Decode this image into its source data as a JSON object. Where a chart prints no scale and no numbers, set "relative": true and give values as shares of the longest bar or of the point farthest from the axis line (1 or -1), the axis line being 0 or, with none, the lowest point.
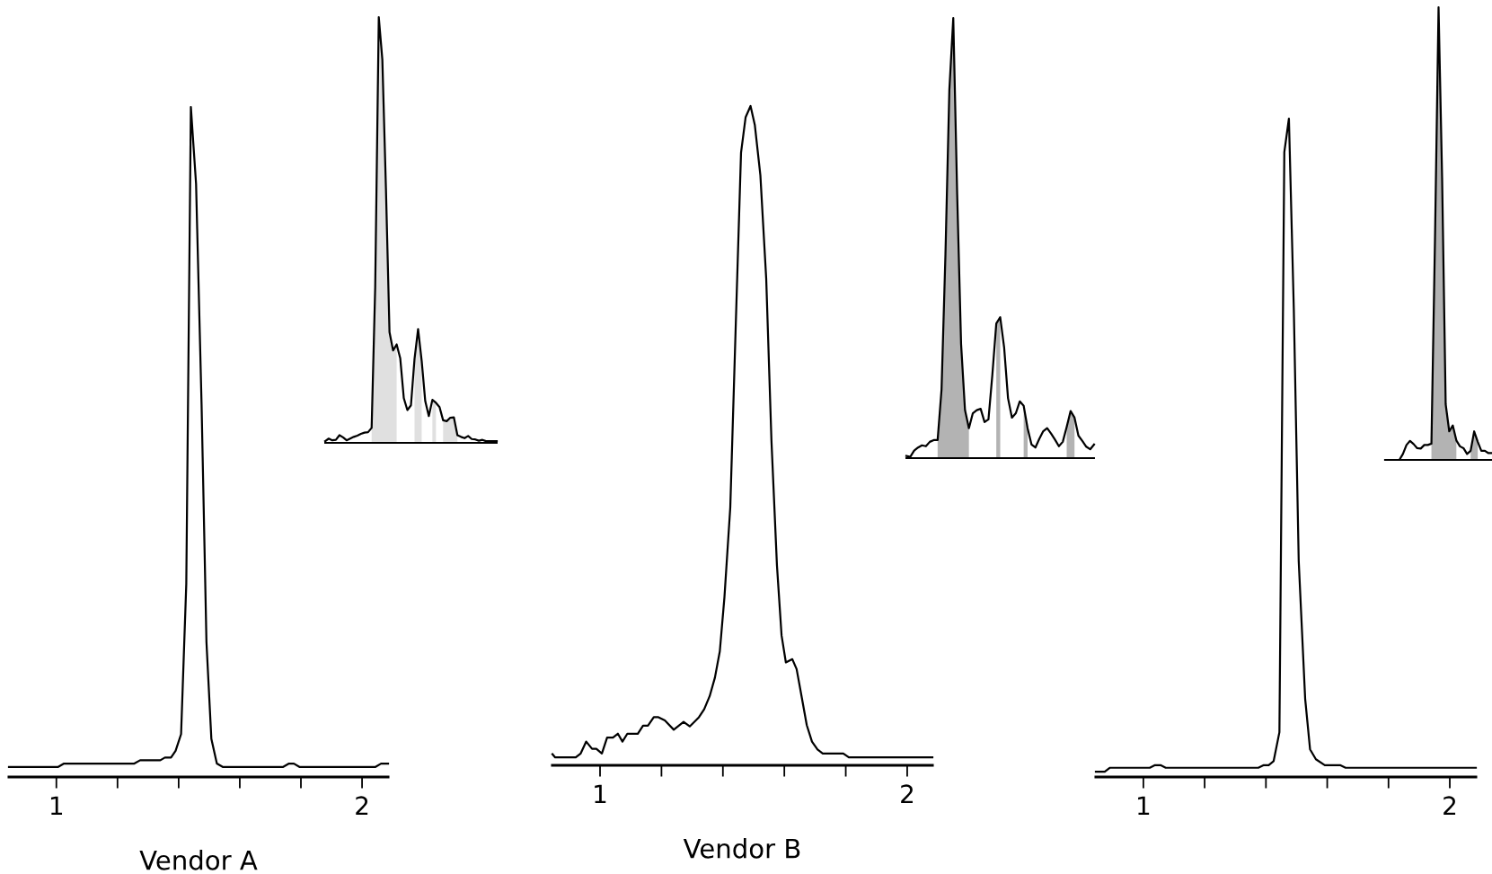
{
  "chart_data": [
    {
      "type": "line",
      "xlabel": "Vendor A",
      "relative": true,
      "xlim": [
        0.845,
        2.085
      ],
      "xticks": [
        1,
        {
          "value": 1.2,
          "label": null
        },
        {
          "value": 1.4,
          "label": null
        },
        {
          "value": 1.6,
          "label": null
        },
        {
          "value": 1.8,
          "label": null
        },
        2
      ],
      "x": [
        0.845,
        1.006,
        1.025,
        1.255,
        1.274,
        1.34,
        1.355,
        1.375,
        1.39,
        1.408,
        1.425,
        1.44,
        1.457,
        1.475,
        1.491,
        1.507,
        1.525,
        1.544,
        1.742,
        1.761,
        1.777,
        1.795,
        2.044,
        2.062,
        2.085
      ],
      "series": [
        {
          "color": "#000000",
          "values": [
            0.015,
            0.015,
            0.02,
            0.02,
            0.025,
            0.025,
            0.029,
            0.029,
            0.039,
            0.064,
            0.288,
            1.0,
            0.885,
            0.556,
            0.201,
            0.057,
            0.02,
            0.015,
            0.015,
            0.02,
            0.02,
            0.015,
            0.015,
            0.02,
            0.02
          ]
        }
      ]
    },
    {
      "type": "line",
      "relative": true,
      "categories": [
        null,
        null,
        null,
        null,
        null,
        null,
        null,
        null,
        null,
        null,
        null,
        null,
        null,
        null,
        null,
        null,
        null,
        null,
        null,
        null,
        null,
        null,
        null,
        null,
        null,
        null,
        null,
        null,
        null,
        null,
        null,
        null,
        null,
        null,
        null,
        null,
        null,
        null,
        null,
        null,
        null,
        null,
        null,
        null,
        null,
        null,
        null,
        null,
        null
      ],
      "series": [
        {
          "color": "#000000",
          "values": [
            0.004,
            0.01,
            0.006,
            0.007,
            0.018,
            0.013,
            0.006,
            0.01,
            0.014,
            0.017,
            0.021,
            0.024,
            0.025,
            0.035,
            0.366,
            1.0,
            0.9,
            0.598,
            0.26,
            0.217,
            0.231,
            0.199,
            0.105,
            0.077,
            0.088,
            0.197,
            0.267,
            0.193,
            0.098,
            0.063,
            0.101,
            0.094,
            0.084,
            0.053,
            0.051,
            0.059,
            0.06,
            0.018,
            0.014,
            0.011,
            0.016,
            0.009,
            0.008,
            0.005,
            0.007,
            0.004,
            0.004,
            0.004,
            0.004
          ]
        },
        {
          "type": "area",
          "color": "#e0e0e0",
          "values": [
            null,
            null,
            null,
            null,
            null,
            null,
            null,
            null,
            null,
            null,
            null,
            null,
            null,
            0.035,
            0.366,
            1.0,
            0.9,
            0.598,
            0.26,
            0.217,
            0.231,
            null,
            null,
            null,
            null,
            0.197,
            0.267,
            0.193,
            null,
            null,
            0.101,
            0.094,
            null,
            0.053,
            0.051,
            0.059,
            0.06,
            0.018,
            null,
            null,
            null,
            null,
            null,
            null,
            null,
            null,
            null,
            null,
            null
          ]
        }
      ]
    },
    {
      "type": "line",
      "xlabel": "Vendor B",
      "relative": true,
      "xlim": [
        0.845,
        2.082
      ],
      "xticks": [
        1,
        {
          "value": 1.2,
          "label": null
        },
        {
          "value": 1.4,
          "label": null
        },
        {
          "value": 1.6,
          "label": null
        },
        {
          "value": 1.8,
          "label": null
        },
        2
      ],
      "x": [
        0.845,
        0.854,
        0.921,
        0.937,
        0.955,
        0.974,
        0.988,
        1.006,
        1.023,
        1.042,
        1.058,
        1.073,
        1.089,
        1.123,
        1.14,
        1.156,
        1.175,
        1.19,
        1.211,
        1.24,
        1.272,
        1.292,
        1.322,
        1.339,
        1.357,
        1.374,
        1.39,
        1.405,
        1.424,
        1.442,
        1.459,
        1.474,
        1.49,
        1.504,
        1.522,
        1.541,
        1.558,
        1.576,
        1.591,
        1.605,
        1.626,
        1.64,
        1.656,
        1.673,
        1.69,
        1.708,
        1.725,
        1.792,
        1.81,
        2.082
      ],
      "series": [
        {
          "color": "#000000",
          "values": [
            0.017,
            0.012,
            0.012,
            0.018,
            0.036,
            0.025,
            0.025,
            0.018,
            0.042,
            0.042,
            0.048,
            0.036,
            0.048,
            0.048,
            0.06,
            0.06,
            0.073,
            0.073,
            0.068,
            0.054,
            0.066,
            0.059,
            0.073,
            0.085,
            0.105,
            0.133,
            0.173,
            0.255,
            0.391,
            0.67,
            0.929,
            0.983,
            1.0,
            0.971,
            0.895,
            0.738,
            0.493,
            0.303,
            0.197,
            0.156,
            0.161,
            0.146,
            0.105,
            0.061,
            0.036,
            0.024,
            0.018,
            0.018,
            0.012,
            0.012
          ]
        }
      ]
    },
    {
      "type": "line",
      "relative": true,
      "categories": [
        null,
        null,
        null,
        null,
        null,
        null,
        null,
        null,
        null,
        null,
        null,
        null,
        null,
        null,
        null,
        null,
        null,
        null,
        null,
        null,
        null,
        null,
        null,
        null,
        null,
        null,
        null,
        null,
        null,
        null,
        null,
        null,
        null,
        null,
        null,
        null,
        null,
        null,
        null,
        null,
        null,
        null,
        null,
        null,
        null,
        null,
        null,
        null,
        null
      ],
      "series": [
        {
          "color": "#000000",
          "values": [
            0.005,
            0.003,
            0.017,
            0.024,
            0.029,
            0.027,
            0.037,
            0.041,
            0.041,
            0.156,
            0.463,
            0.837,
            1.0,
            0.599,
            0.259,
            0.109,
            0.068,
            0.102,
            0.109,
            0.112,
            0.082,
            0.088,
            0.19,
            0.306,
            0.32,
            0.252,
            0.136,
            0.092,
            0.102,
            0.129,
            0.119,
            0.068,
            0.031,
            0.024,
            0.044,
            0.061,
            0.068,
            0.056,
            0.042,
            0.027,
            0.037,
            0.071,
            0.107,
            0.092,
            0.051,
            0.039,
            0.026,
            0.02,
            0.031
          ]
        },
        {
          "type": "area",
          "color": "#b3b3b3",
          "values": [
            null,
            null,
            null,
            null,
            null,
            null,
            null,
            null,
            0.041,
            0.156,
            0.463,
            0.837,
            1.0,
            0.599,
            0.259,
            0.109,
            0.068,
            null,
            null,
            null,
            null,
            null,
            null,
            0.306,
            0.32,
            null,
            null,
            null,
            null,
            null,
            0.119,
            0.068,
            null,
            null,
            null,
            null,
            null,
            null,
            null,
            null,
            null,
            0.071,
            0.107,
            0.092,
            null,
            null,
            null,
            null,
            null
          ]
        }
      ]
    },
    {
      "type": "line",
      "relative": true,
      "xlim": [
        0.845,
        2.085
      ],
      "xticks": [
        1,
        {
          "value": 1.2,
          "label": null
        },
        {
          "value": 1.4,
          "label": null
        },
        {
          "value": 1.6,
          "label": null
        },
        {
          "value": 1.8,
          "label": null
        },
        2
      ],
      "x": [
        0.845,
        0.874,
        0.891,
        1.021,
        1.038,
        1.056,
        1.073,
        1.375,
        1.393,
        1.409,
        1.425,
        1.444,
        1.46,
        1.475,
        1.491,
        1.507,
        1.528,
        1.544,
        1.563,
        1.592,
        1.642,
        1.66,
        2.085
      ],
      "series": [
        {
          "color": "#000000",
          "values": [
            0.008,
            0.008,
            0.014,
            0.014,
            0.018,
            0.018,
            0.014,
            0.014,
            0.018,
            0.018,
            0.024,
            0.068,
            0.949,
            1.0,
            0.71,
            0.328,
            0.119,
            0.042,
            0.027,
            0.018,
            0.018,
            0.014,
            0.014
          ]
        }
      ]
    },
    {
      "type": "line",
      "relative": true,
      "categories": [
        null,
        null,
        null,
        null,
        null,
        null,
        null,
        null,
        null,
        null,
        null,
        null,
        null,
        null,
        null,
        null,
        null,
        null,
        null,
        null,
        null,
        null,
        null,
        null,
        null,
        null,
        null,
        null,
        null,
        null,
        null
      ],
      "series": [
        {
          "color": "#000000",
          "values": [
            0,
            0,
            0,
            0,
            0,
            0.013,
            0.033,
            0.042,
            0.035,
            0.026,
            0.025,
            0.033,
            0.033,
            0.036,
            0.487,
            1.0,
            0.623,
            0.123,
            0.063,
            0.076,
            0.043,
            0.03,
            0.026,
            0.013,
            0.02,
            0.063,
            0.04,
            0.02,
            0.02,
            0.015,
            0.015
          ]
        },
        {
          "type": "area",
          "color": "#b3b3b3",
          "values": [
            null,
            null,
            null,
            null,
            null,
            null,
            null,
            null,
            null,
            null,
            null,
            null,
            null,
            0.036,
            0.487,
            1.0,
            0.623,
            0.123,
            0.063,
            0.076,
            0.043,
            null,
            null,
            null,
            0.02,
            0.063,
            0.04,
            null,
            null,
            null,
            null
          ]
        }
      ]
    }
  ]
}
